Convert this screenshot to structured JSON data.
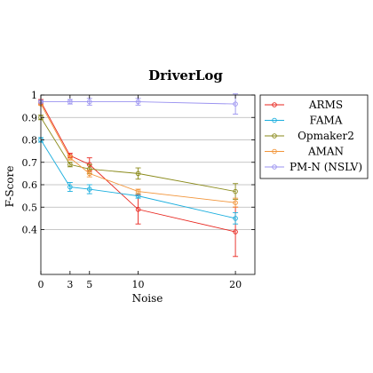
{
  "chart_data": {
    "type": "line",
    "title": "DriverLog",
    "xlabel": "Noise",
    "ylabel": "F-Score",
    "x": [
      0,
      3,
      5,
      10,
      20
    ],
    "xlim": [
      0,
      22
    ],
    "ylim": [
      0.2,
      1.0
    ],
    "xticks": [
      "0",
      "3",
      "5",
      "10",
      "20"
    ],
    "yticks": [
      "0.4",
      "0.5",
      "0.6",
      "0.7",
      "0.8",
      "0.9",
      "1"
    ],
    "grid": "horizontal",
    "legend_position": "right",
    "series": [
      {
        "name": "ARMS",
        "color": "#e8251e",
        "values": [
          0.97,
          0.73,
          0.69,
          0.49,
          0.39
        ],
        "errors": [
          0.01,
          0.01,
          0.03,
          0.065,
          0.11
        ]
      },
      {
        "name": "FAMA",
        "color": "#1aaede",
        "values": [
          0.8,
          0.59,
          0.58,
          0.55,
          0.45
        ],
        "errors": [
          0.01,
          0.02,
          0.02,
          0.01,
          0.025
        ]
      },
      {
        "name": "Opmaker2",
        "color": "#8a8a1a",
        "values": [
          0.9,
          0.69,
          0.67,
          0.65,
          0.57
        ],
        "errors": [
          0.01,
          0.01,
          0.02,
          0.025,
          0.035
        ]
      },
      {
        "name": "AMAN",
        "color": "#f2953a",
        "values": [
          0.96,
          0.72,
          0.65,
          0.57,
          0.52
        ],
        "errors": [
          0.005,
          0.01,
          0.015,
          0.01,
          0.02
        ]
      },
      {
        "name": "PM-N (NSLV)",
        "color": "#9a92f0",
        "values": [
          0.97,
          0.97,
          0.97,
          0.97,
          0.96
        ],
        "errors": [
          0.005,
          0.01,
          0.015,
          0.015,
          0.045
        ]
      }
    ]
  }
}
